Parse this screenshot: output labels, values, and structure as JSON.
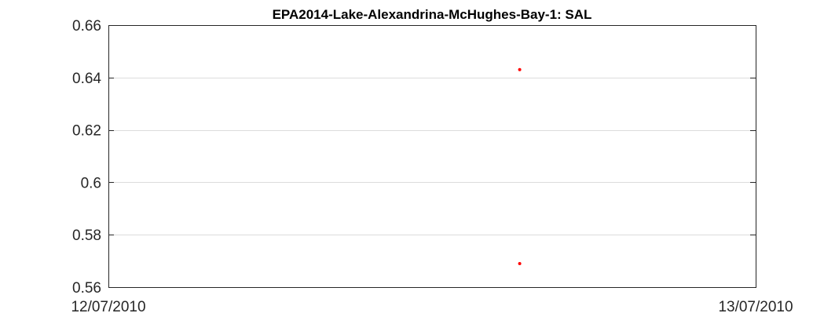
{
  "chart_data": {
    "type": "scatter",
    "title": "EPA2014-Lake-Alexandrina-McHughes-Bay-1: SAL",
    "xlabel": "",
    "ylabel": "",
    "x_tick_labels": [
      "12/07/2010",
      "13/07/2010"
    ],
    "xlim": [
      "2010-07-12",
      "2010-07-13"
    ],
    "ylim": [
      0.56,
      0.66
    ],
    "y_ticks": [
      0.56,
      0.58,
      0.6,
      0.62,
      0.64,
      0.66
    ],
    "y_tick_labels": [
      "0.56",
      "0.58",
      "0.6",
      "0.62",
      "0.64",
      "0.66"
    ],
    "grid": true,
    "marker_color": "#ff0000",
    "series": [
      {
        "x": [
          "2010-07-12 15:15",
          "2010-07-12 15:15"
        ],
        "y": [
          0.643,
          0.569
        ]
      }
    ]
  }
}
